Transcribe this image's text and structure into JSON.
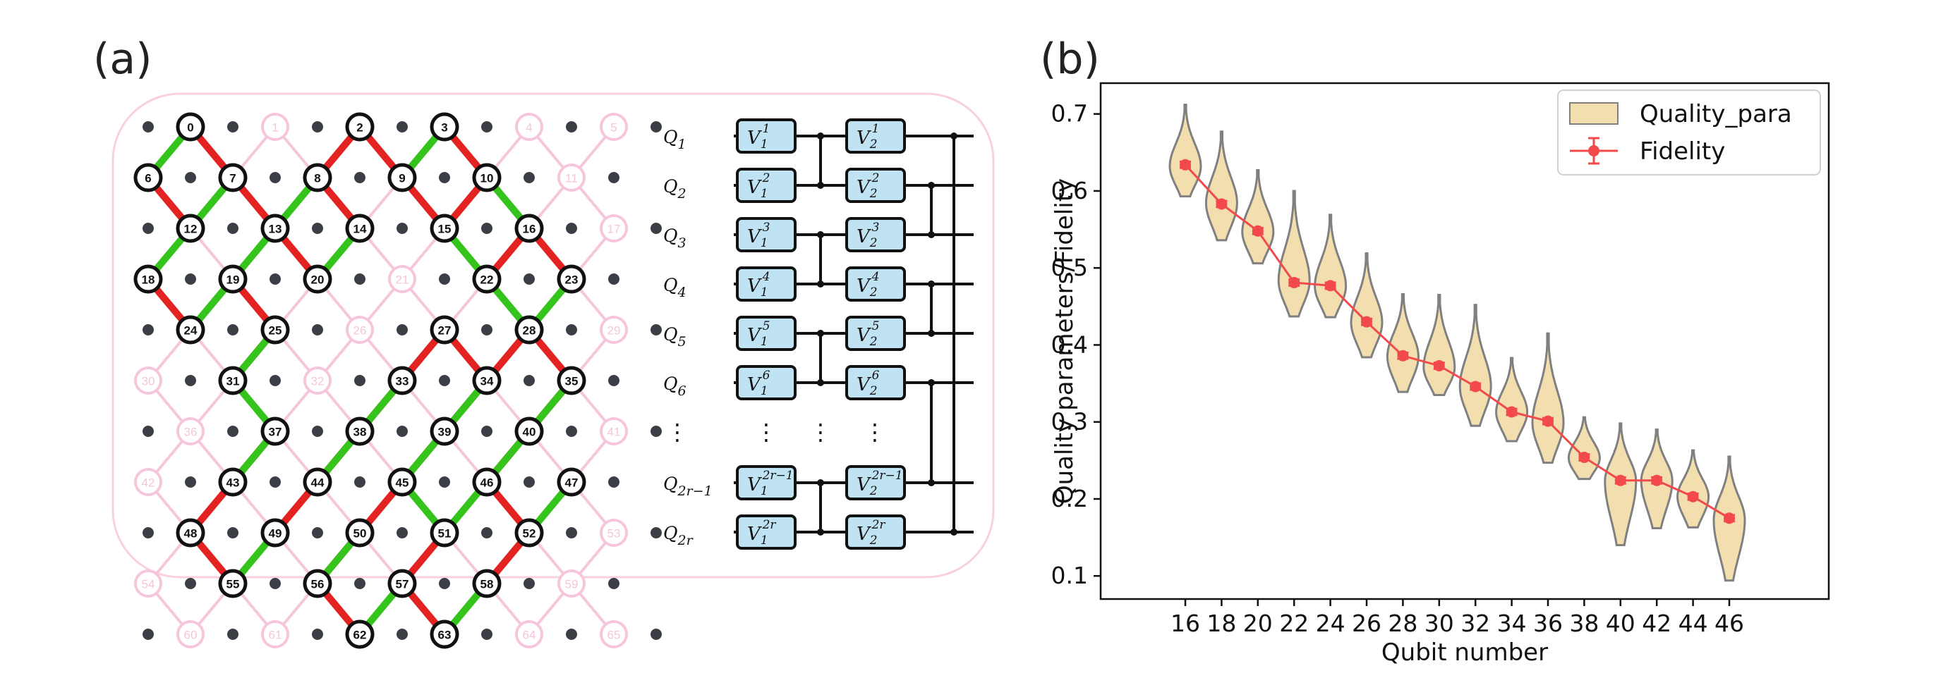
{
  "panel_a": {
    "label": "(a)",
    "lattice": {
      "faded_qubits": [
        "1",
        "5",
        "4",
        "11",
        "17",
        "21",
        "26",
        "29",
        "30",
        "32",
        "36",
        "41",
        "42",
        "53",
        "54",
        "59",
        "60",
        "61",
        "64",
        "65"
      ],
      "active_qubits": [
        "0",
        "2",
        "3",
        "6",
        "7",
        "8",
        "9",
        "10",
        "12",
        "13",
        "14",
        "15",
        "16",
        "18",
        "19",
        "20",
        "22",
        "23",
        "24",
        "25",
        "27",
        "28",
        "31",
        "33",
        "34",
        "35",
        "37",
        "38",
        "39",
        "40",
        "43",
        "44",
        "45",
        "46",
        "47",
        "48",
        "49",
        "50",
        "51",
        "52",
        "55",
        "56",
        "57",
        "58",
        "62",
        "63"
      ],
      "red_couplers": [
        [
          "0",
          "7"
        ],
        [
          "2",
          "8"
        ],
        [
          "2",
          "9"
        ],
        [
          "3",
          "10"
        ],
        [
          "6",
          "12"
        ],
        [
          "7",
          "13"
        ],
        [
          "8",
          "14"
        ],
        [
          "9",
          "15"
        ],
        [
          "10",
          "15"
        ],
        [
          "16",
          "22"
        ],
        [
          "18",
          "24"
        ],
        [
          "19",
          "25"
        ],
        [
          "13",
          "20"
        ],
        [
          "16",
          "23"
        ],
        [
          "27",
          "34"
        ],
        [
          "28",
          "35"
        ],
        [
          "25",
          "31"
        ],
        [
          "27",
          "33"
        ],
        [
          "28",
          "34"
        ],
        [
          "33",
          "38"
        ],
        [
          "35",
          "40"
        ],
        [
          "34",
          "39"
        ],
        [
          "37",
          "43"
        ],
        [
          "38",
          "44"
        ],
        [
          "39",
          "45"
        ],
        [
          "40",
          "46"
        ],
        [
          "43",
          "48"
        ],
        [
          "44",
          "49"
        ],
        [
          "45",
          "50"
        ],
        [
          "46",
          "52"
        ],
        [
          "48",
          "55"
        ],
        [
          "50",
          "56"
        ],
        [
          "51",
          "57"
        ],
        [
          "52",
          "58"
        ],
        [
          "56",
          "62"
        ],
        [
          "57",
          "63"
        ]
      ],
      "green_couplers": [
        [
          "0",
          "6"
        ],
        [
          "3",
          "9"
        ],
        [
          "7",
          "12"
        ],
        [
          "8",
          "13"
        ],
        [
          "14",
          "20"
        ],
        [
          "10",
          "16"
        ],
        [
          "15",
          "22"
        ],
        [
          "12",
          "18"
        ],
        [
          "13",
          "19"
        ],
        [
          "19",
          "24"
        ],
        [
          "22",
          "28"
        ],
        [
          "23",
          "28"
        ],
        [
          "25",
          "31"
        ],
        [
          "31",
          "37"
        ],
        [
          "33",
          "38"
        ],
        [
          "34",
          "39"
        ],
        [
          "35",
          "40"
        ],
        [
          "37",
          "43"
        ],
        [
          "38",
          "44"
        ],
        [
          "39",
          "45"
        ],
        [
          "40",
          "46"
        ],
        [
          "46",
          "51"
        ],
        [
          "47",
          "52"
        ],
        [
          "49",
          "55"
        ],
        [
          "50",
          "56"
        ],
        [
          "45",
          "51"
        ],
        [
          "57",
          "62"
        ],
        [
          "58",
          "63"
        ]
      ],
      "gray_dot_color": "#3b3f45",
      "faded_color": "#f5c6dc",
      "red_color": "#e32222",
      "green_color": "#35c41b"
    },
    "circuit": {
      "rows": [
        {
          "label": "Q",
          "sub": "1",
          "g1": "V",
          "g1sub": "1",
          "g1sup": "1",
          "g2": "V",
          "g2sub": "2",
          "g2sup": "1"
        },
        {
          "label": "Q",
          "sub": "2",
          "g1": "V",
          "g1sub": "1",
          "g1sup": "2",
          "g2": "V",
          "g2sub": "2",
          "g2sup": "2"
        },
        {
          "label": "Q",
          "sub": "3",
          "g1": "V",
          "g1sub": "1",
          "g1sup": "3",
          "g2": "V",
          "g2sub": "2",
          "g2sup": "3"
        },
        {
          "label": "Q",
          "sub": "4",
          "g1": "V",
          "g1sub": "1",
          "g1sup": "4",
          "g2": "V",
          "g2sub": "2",
          "g2sup": "4"
        },
        {
          "label": "Q",
          "sub": "5",
          "g1": "V",
          "g1sub": "1",
          "g1sup": "5",
          "g2": "V",
          "g2sub": "2",
          "g2sup": "5"
        },
        {
          "label": "Q",
          "sub": "6",
          "g1": "V",
          "g1sub": "1",
          "g1sup": "6",
          "g2": "V",
          "g2sub": "2",
          "g2sup": "6"
        },
        {
          "label": "Q",
          "sub": "2r−1",
          "g1": "V",
          "g1sub": "1",
          "g1sup": "2r−1",
          "g2": "V",
          "g2sub": "2",
          "g2sup": "2r−1"
        },
        {
          "label": "Q",
          "sub": "2r",
          "g1": "V",
          "g1sub": "1",
          "g1sup": "2r",
          "g2": "V",
          "g2sub": "2",
          "g2sup": "2r"
        }
      ],
      "gate_fill": "#bfe3f3",
      "vdots": "⋮"
    }
  },
  "panel_b": {
    "label": "(b)",
    "chart_data": {
      "type": "violin",
      "x": [
        16,
        18,
        20,
        22,
        24,
        26,
        28,
        30,
        32,
        34,
        36,
        38,
        40,
        42,
        44,
        46
      ],
      "xlabel": "Qubit number",
      "ylabel": "Quality parameters/Fidelity",
      "ylim": [
        0.07,
        0.74
      ],
      "yticks": [
        0.1,
        0.2,
        0.3,
        0.4,
        0.5,
        0.6,
        0.7
      ],
      "grid": false,
      "legend_position": "top-right",
      "series": [
        {
          "name": "Quality_para",
          "kind": "violin",
          "color": "#f3deb0",
          "edge": "#808080",
          "median": [
            0.632,
            0.584,
            0.547,
            0.483,
            0.476,
            0.429,
            0.385,
            0.371,
            0.346,
            0.313,
            0.299,
            0.253,
            0.223,
            0.224,
            0.203,
            0.173
          ],
          "min": [
            0.593,
            0.536,
            0.506,
            0.437,
            0.436,
            0.384,
            0.339,
            0.335,
            0.295,
            0.275,
            0.247,
            0.226,
            0.14,
            0.162,
            0.163,
            0.094
          ],
          "max": [
            0.712,
            0.677,
            0.627,
            0.6,
            0.569,
            0.519,
            0.466,
            0.465,
            0.452,
            0.383,
            0.415,
            0.306,
            0.298,
            0.29,
            0.263,
            0.255
          ]
        },
        {
          "name": "Fidelity",
          "kind": "line-errorbar",
          "color": "#f24a4a",
          "values": [
            0.634,
            0.583,
            0.548,
            0.481,
            0.477,
            0.43,
            0.386,
            0.373,
            0.346,
            0.313,
            0.301,
            0.254,
            0.224,
            0.224,
            0.203,
            0.175
          ],
          "err": [
            0.004,
            0.004,
            0.004,
            0.004,
            0.004,
            0.004,
            0.004,
            0.004,
            0.004,
            0.004,
            0.004,
            0.004,
            0.004,
            0.004,
            0.004,
            0.004
          ]
        }
      ]
    }
  }
}
